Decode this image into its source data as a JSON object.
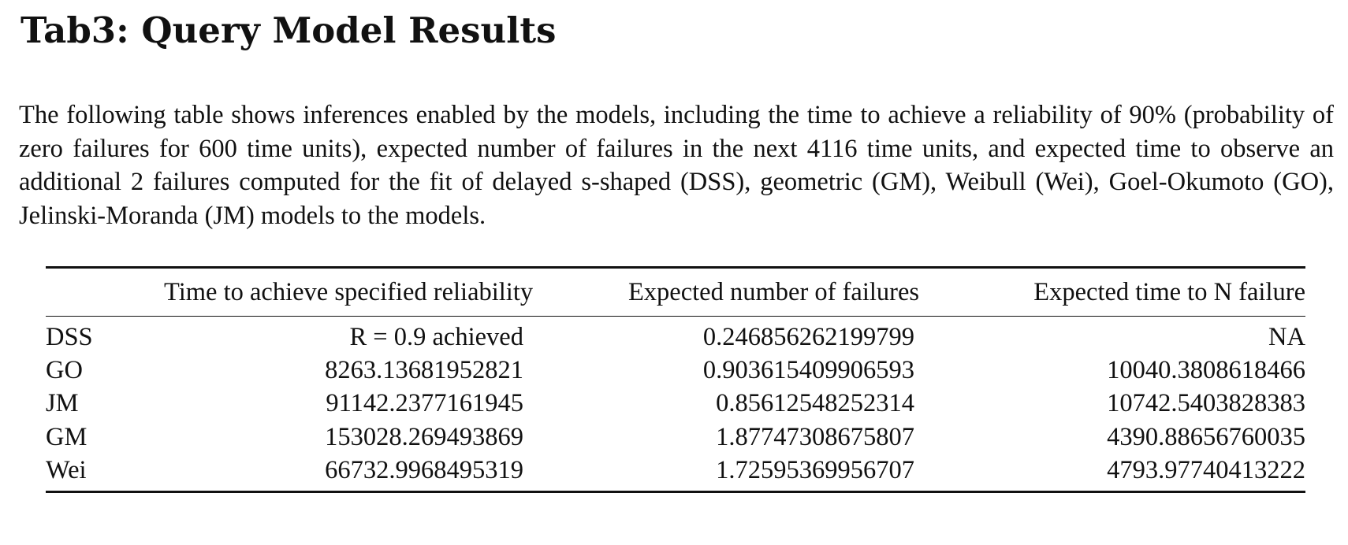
{
  "document": {
    "title": "Tab3: Query Model Results",
    "intro": "The following table shows inferences enabled by the models, including the time to achieve a reliability of 90% (probability of zero failures for 600 time units), expected number of failures in the next 4116 time units, and expected time to observe an additional 2 failures computed for the fit of delayed s-shaped (DSS), geometric (GM), Weibull (Wei), Goel-Okumoto (GO), Jelinski-Moranda (JM) models to the models."
  },
  "table": {
    "headers": [
      "",
      "Time to achieve specified reliability",
      "Expected number of failures",
      "Expected time to N failure"
    ],
    "rows": [
      [
        "DSS",
        "R = 0.9 achieved",
        "0.246856262199799",
        "NA"
      ],
      [
        "GO",
        "8263.13681952821",
        "0.903615409906593",
        "10040.3808618466"
      ],
      [
        "JM",
        "91142.2377161945",
        "0.85612548252314",
        "10742.5403828383"
      ],
      [
        "GM",
        "153028.269493869",
        "1.87747308675807",
        "4390.88656760035"
      ],
      [
        "Wei",
        "66732.9968495319",
        "1.72595369956707",
        "4793.97740413222"
      ]
    ]
  }
}
